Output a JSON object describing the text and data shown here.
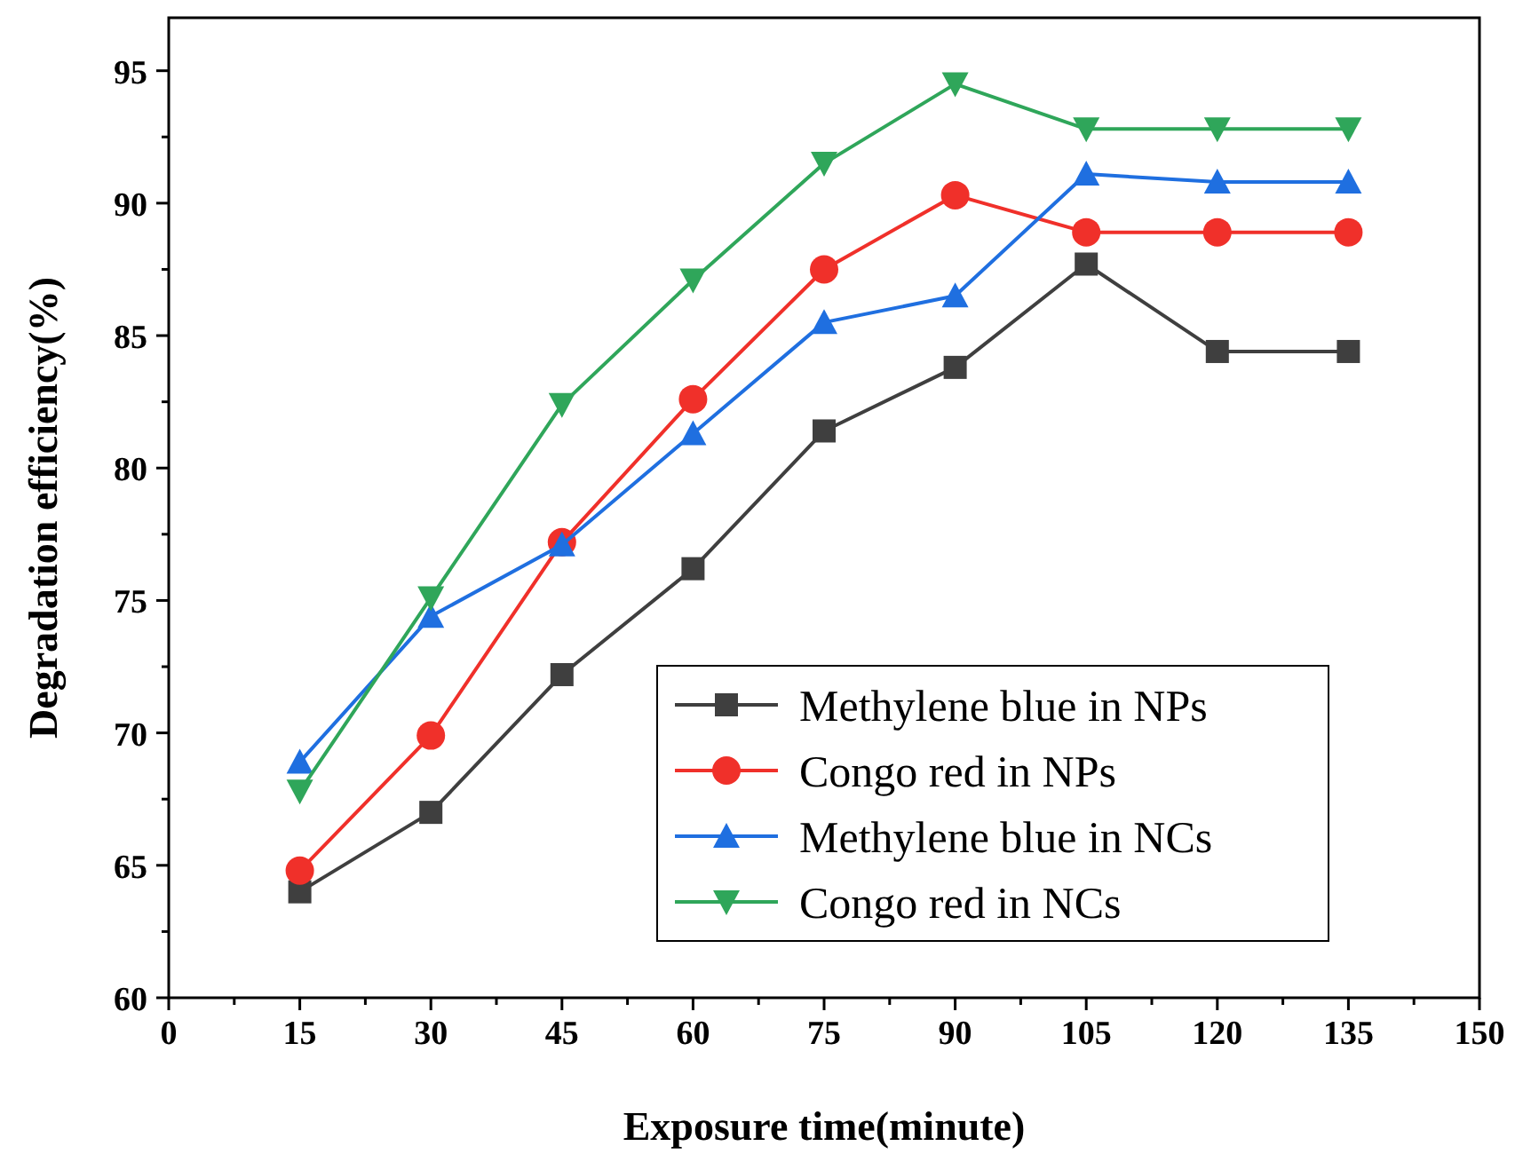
{
  "chart_data": {
    "type": "line",
    "xlabel": "Exposure time(minute)",
    "ylabel": "Degradation efficiency(%)",
    "x": [
      15,
      30,
      45,
      60,
      75,
      90,
      105,
      120,
      135
    ],
    "xlim": [
      0,
      150
    ],
    "xticks": [
      0,
      {
        "value": 7.5,
        "label": null
      },
      15,
      {
        "value": 22.5,
        "label": null
      },
      30,
      {
        "value": 37.5,
        "label": null
      },
      45,
      {
        "value": 52.5,
        "label": null
      },
      60,
      {
        "value": 67.5,
        "label": null
      },
      75,
      {
        "value": 82.5,
        "label": null
      },
      90,
      {
        "value": 97.5,
        "label": null
      },
      105,
      {
        "value": 112.5,
        "label": null
      },
      120,
      {
        "value": 127.5,
        "label": null
      },
      135,
      {
        "value": 142.5,
        "label": null
      },
      150
    ],
    "ylim": [
      60,
      97
    ],
    "yticks": [
      60,
      {
        "value": 62.5,
        "label": null
      },
      65,
      {
        "value": 67.5,
        "label": null
      },
      70,
      {
        "value": 72.5,
        "label": null
      },
      75,
      {
        "value": 77.5,
        "label": null
      },
      80,
      {
        "value": 82.5,
        "label": null
      },
      85,
      {
        "value": 87.5,
        "label": null
      },
      90,
      {
        "value": 92.5,
        "label": null
      },
      95
    ],
    "grid": false,
    "legend": "bottom right",
    "line_style": "solid",
    "series": [
      {
        "name": "Methylene blue in NPs",
        "color": "#3f3f3f",
        "marker": "square",
        "values": [
          64.0,
          67.0,
          72.2,
          76.2,
          81.4,
          83.8,
          87.7,
          84.4,
          84.4
        ]
      },
      {
        "name": "Congo red in NPs",
        "color": "#f0302a",
        "marker": "circle",
        "values": [
          64.8,
          69.9,
          77.2,
          82.6,
          87.5,
          90.3,
          88.9,
          88.9,
          88.9
        ]
      },
      {
        "name": "Methylene blue in NCs",
        "color": "#1f6fe0",
        "marker": "triangle",
        "values": [
          68.9,
          74.4,
          77.1,
          81.3,
          85.5,
          86.5,
          91.1,
          90.8,
          90.8
        ]
      },
      {
        "name": "Congo red in NCs",
        "color": "#2fa65a",
        "marker": "triangle-down",
        "values": [
          67.8,
          75.1,
          82.4,
          87.1,
          91.5,
          94.5,
          92.8,
          92.8,
          92.8
        ]
      }
    ]
  }
}
